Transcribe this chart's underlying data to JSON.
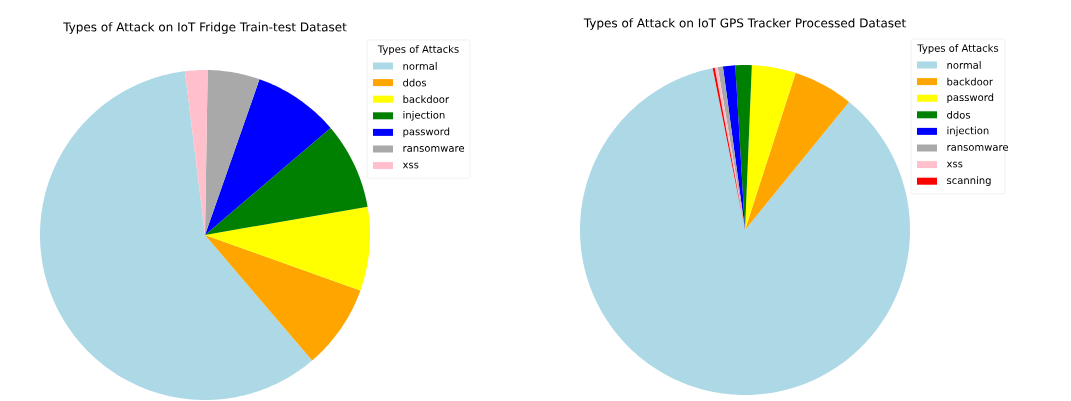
{
  "chart_data": [
    {
      "type": "pie",
      "title": "Types of Attack on IoT Fridge Train-test Dataset",
      "legend_title": "Types of Attacks",
      "legend": "top right",
      "categories": [
        "normal",
        "ddos",
        "backdoor",
        "injection",
        "password",
        "ransomware",
        "xss"
      ],
      "values": [
        59.3,
        8.3,
        8.2,
        8.5,
        8.4,
        5.1,
        2.2
      ],
      "colors": [
        "#add8e6",
        "#ffa500",
        "#ffff00",
        "#008000",
        "#0000ff",
        "#a9a9a9",
        "#ffc0cb"
      ]
    },
    {
      "type": "pie",
      "title": "Types of Attack on IoT GPS Tracker Processed Dataset",
      "legend_title": "Types of Attacks",
      "legend": "top right",
      "categories": [
        "normal",
        "backdoor",
        "password",
        "ddos",
        "injection",
        "ransomware",
        "xss",
        "scanning"
      ],
      "values": [
        86.0,
        5.9,
        4.3,
        1.6,
        1.2,
        0.5,
        0.3,
        0.2
      ],
      "colors": [
        "#add8e6",
        "#ffa500",
        "#ffff00",
        "#008000",
        "#0000ff",
        "#a9a9a9",
        "#ffc0cb",
        "#ff0000"
      ]
    }
  ]
}
